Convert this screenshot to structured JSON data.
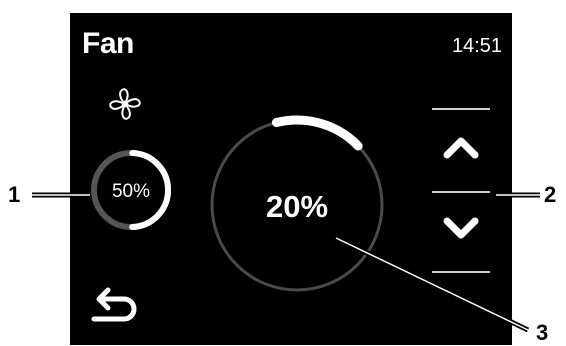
{
  "screen": {
    "title": "Fan",
    "time": "14:51",
    "fan_icon": "fan-icon",
    "small_dial": {
      "label": "50%",
      "level": 0.5
    },
    "main_dial": {
      "label": "20%",
      "level": 0.2
    },
    "up_icon": "chevron-up-icon",
    "down_icon": "chevron-down-icon",
    "back_icon": "back-arrow-icon"
  },
  "callouts": [
    {
      "number": "1"
    },
    {
      "number": "2"
    },
    {
      "number": "3"
    }
  ],
  "colors": {
    "screen_bg": "#000000",
    "foreground": "#ffffff",
    "dial_track": "#555555",
    "callout": "#000000"
  }
}
